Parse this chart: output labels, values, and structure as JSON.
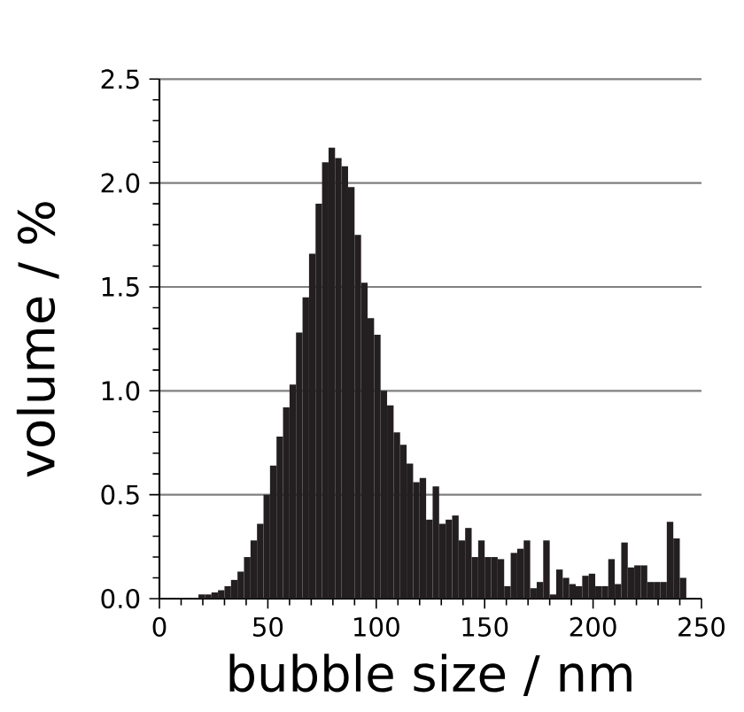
{
  "chart_data": {
    "type": "histogram",
    "xlabel": "bubble size / nm",
    "ylabel": "volume / %",
    "bins": [
      0,
      3,
      6,
      9,
      12,
      15,
      18,
      21,
      24,
      27,
      30,
      33,
      36,
      39,
      42,
      45,
      48,
      51,
      54,
      57,
      60,
      63,
      66,
      69,
      72,
      75,
      78,
      81,
      84,
      87,
      90,
      93,
      96,
      99,
      102,
      105,
      108,
      111,
      114,
      117,
      120,
      123,
      126,
      129,
      132,
      135,
      138,
      141,
      144,
      147,
      150,
      153,
      156,
      159,
      162,
      165,
      168,
      171,
      174,
      177,
      180,
      183,
      186,
      189,
      192,
      195,
      198,
      201,
      204,
      207,
      210,
      213,
      216,
      219,
      222,
      225,
      228,
      231,
      234,
      237,
      240,
      243,
      246
    ],
    "values": [
      0,
      0,
      0,
      0,
      0,
      0,
      0.02,
      0.02,
      0.03,
      0.04,
      0.06,
      0.09,
      0.13,
      0.2,
      0.28,
      0.36,
      0.5,
      0.64,
      0.78,
      0.92,
      1.03,
      1.28,
      1.45,
      1.66,
      1.9,
      2.1,
      2.17,
      2.12,
      2.08,
      1.98,
      1.75,
      1.52,
      1.35,
      1.27,
      1.0,
      0.93,
      0.8,
      0.74,
      0.65,
      0.56,
      0.58,
      0.38,
      0.54,
      0.36,
      0.38,
      0.4,
      0.28,
      0.34,
      0.2,
      0.28,
      0.2,
      0.2,
      0.19,
      0.06,
      0.22,
      0.24,
      0.28,
      0.05,
      0.08,
      0.28,
      0.02,
      0.14,
      0.1,
      0.07,
      0.06,
      0.11,
      0.12,
      0.06,
      0.06,
      0.19,
      0.07,
      0.27,
      0.15,
      0.16,
      0.16,
      0.08,
      0.08,
      0.08,
      0.37,
      0.29,
      0.1,
      0
    ],
    "color": "#231f20",
    "xlim": [
      0,
      250
    ],
    "ylim": [
      0,
      2.5
    ],
    "xticks": [
      0,
      50,
      100,
      150,
      200,
      250
    ],
    "yticks": [
      {
        "value": 0,
        "label": "0.0"
      },
      {
        "value": 0.5,
        "label": "0.5"
      },
      {
        "value": 1.0,
        "label": "1.0"
      },
      {
        "value": 1.5,
        "label": "1.5"
      },
      {
        "value": 2.0,
        "label": "2.0"
      },
      {
        "value": 2.5,
        "label": "2.5"
      }
    ],
    "grid": "y"
  }
}
